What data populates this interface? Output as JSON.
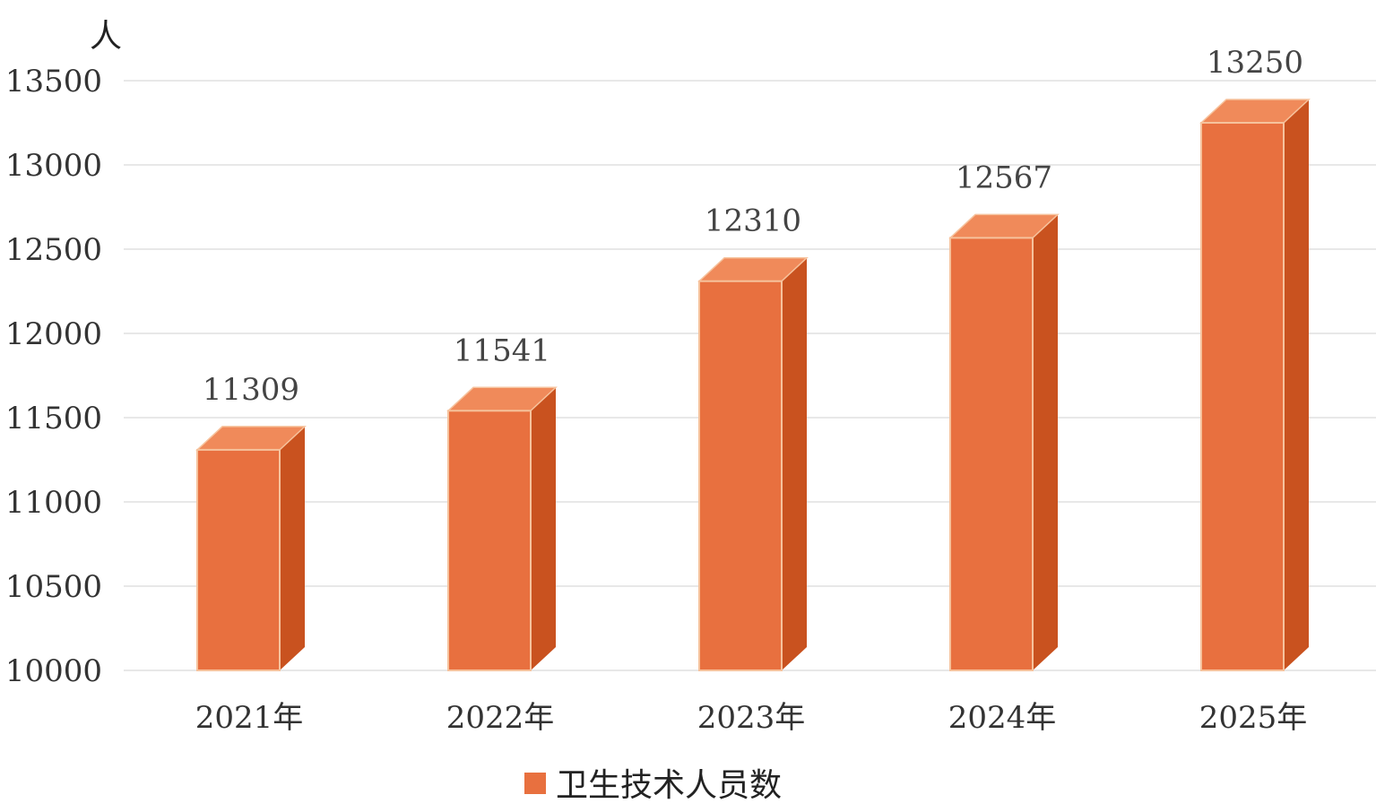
{
  "chart_data": {
    "type": "bar",
    "title": "",
    "xlabel": "",
    "ylabel": "人",
    "categories": [
      "2021年",
      "2022年",
      "2023年",
      "2024年",
      "2025年"
    ],
    "series": [
      {
        "name": "卫生技术人员数",
        "values": [
          11309,
          11541,
          12310,
          12567,
          13250
        ]
      }
    ],
    "data_labels": [
      "11309",
      "11541",
      "12310",
      "12567",
      "13250"
    ],
    "ylim": [
      10000,
      13500
    ],
    "yticks": [
      10000,
      10500,
      11000,
      11500,
      12000,
      12500,
      13000,
      13500
    ],
    "ytick_labels": [
      "10000",
      "10500",
      "11000",
      "11500",
      "12000",
      "12500",
      "13000",
      "13500"
    ],
    "grid": true,
    "legend_position": "bottom",
    "style": "3d-column"
  },
  "colors": {
    "bar_front": "#e8703f",
    "bar_side": "#c9521f",
    "bar_top": "#f08a5a",
    "bar_edge": "#f6c29c",
    "grid": "#e8e8e8"
  }
}
